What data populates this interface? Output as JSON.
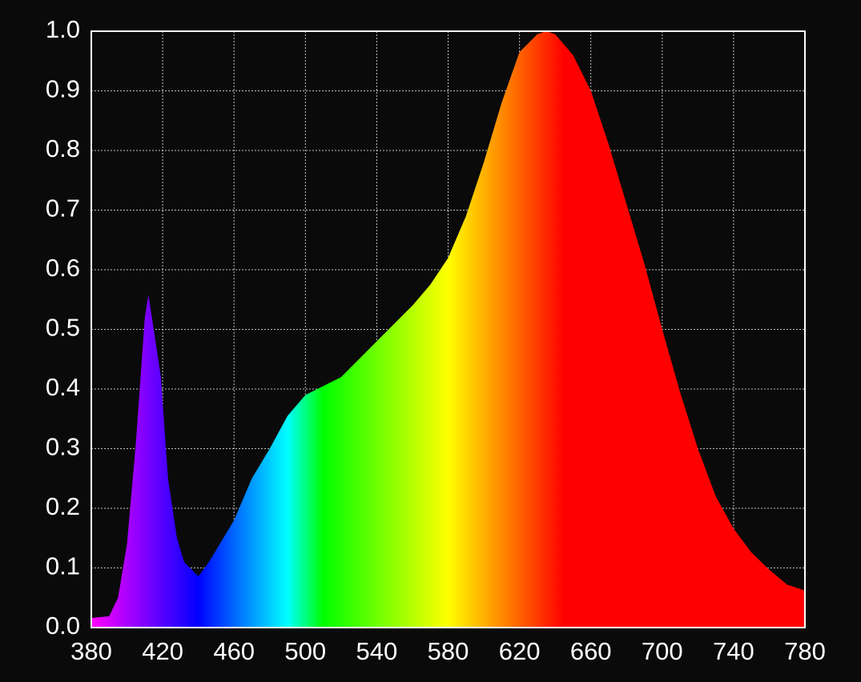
{
  "chart_data": {
    "type": "area",
    "x": [
      380,
      390,
      395,
      400,
      405,
      410,
      412,
      415,
      419,
      423,
      428,
      432,
      440,
      445,
      450,
      460,
      470,
      480,
      490,
      500,
      510,
      520,
      530,
      540,
      550,
      560,
      570,
      580,
      590,
      600,
      610,
      620,
      630,
      635,
      640,
      650,
      660,
      670,
      680,
      690,
      700,
      710,
      720,
      730,
      740,
      750,
      760,
      770,
      780
    ],
    "values": [
      0.016,
      0.019,
      0.05,
      0.14,
      0.31,
      0.52,
      0.558,
      0.5,
      0.42,
      0.25,
      0.15,
      0.11,
      0.086,
      0.106,
      0.13,
      0.18,
      0.25,
      0.3,
      0.355,
      0.39,
      0.405,
      0.42,
      0.45,
      0.48,
      0.51,
      0.54,
      0.575,
      0.62,
      0.69,
      0.78,
      0.88,
      0.965,
      0.995,
      1.0,
      0.995,
      0.96,
      0.9,
      0.81,
      0.71,
      0.61,
      0.5,
      0.395,
      0.3,
      0.22,
      0.166,
      0.126,
      0.097,
      0.072,
      0.062
    ],
    "xlim": [
      380,
      780
    ],
    "ylim": [
      0,
      1
    ],
    "xticks": [
      380,
      420,
      460,
      500,
      540,
      580,
      620,
      660,
      700,
      740,
      780
    ],
    "yticks": [
      {
        "value": 0,
        "label": "0.0"
      },
      0.1,
      0.2,
      0.3,
      0.4,
      0.5,
      0.6,
      0.7,
      0.8,
      0.9,
      {
        "value": 1,
        "label": "1.0"
      }
    ],
    "grid": true
  }
}
